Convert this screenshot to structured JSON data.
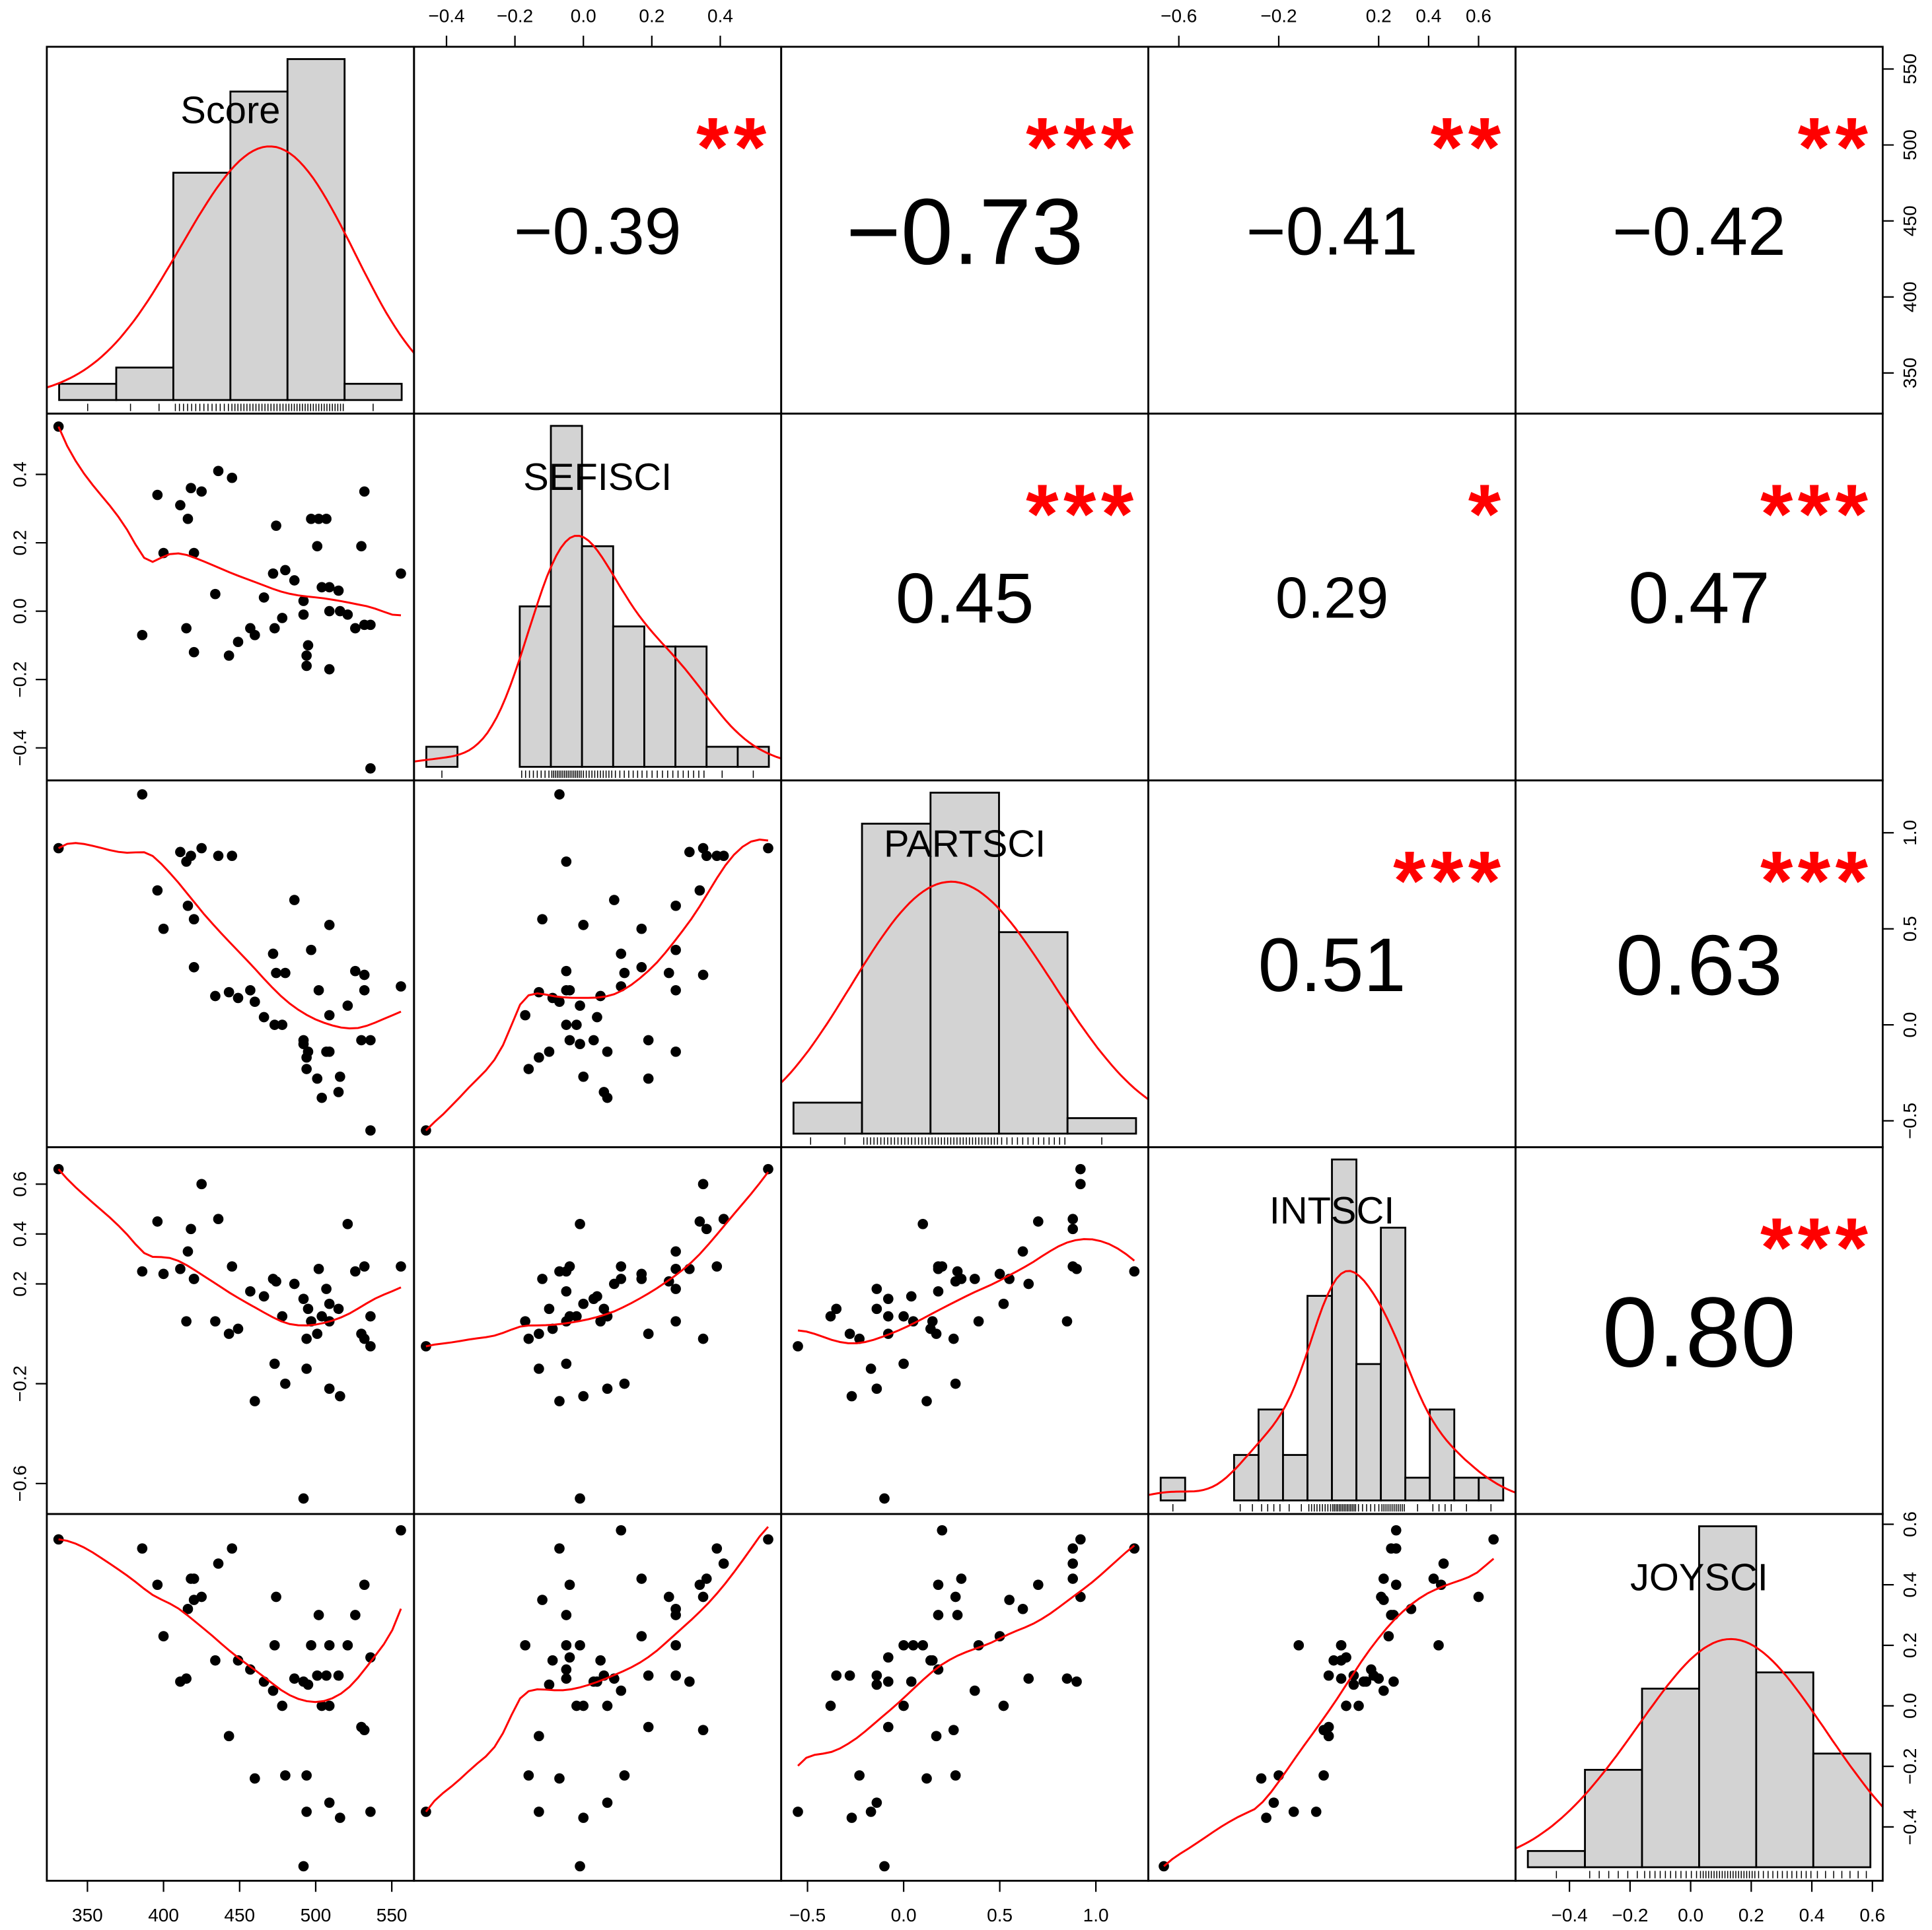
{
  "chart_data": {
    "type": "scatter-matrix",
    "grid": false,
    "colors": {
      "points": "#000000",
      "smooth_line": "#ff0000",
      "density_line": "#ff0000",
      "histogram_fill": "#d3d3d3",
      "stars": "#ff0000",
      "correlation_text": "#000000"
    },
    "variables": [
      {
        "name": "Score",
        "axis_range": [
          323.3,
          564.6
        ],
        "ticks": [
          350,
          400,
          450,
          500,
          550
        ],
        "tick_labels": [
          "350",
          "400",
          "450",
          "500",
          "550"
        ],
        "histogram_counts": [
          1,
          2,
          14,
          19,
          21,
          1
        ]
      },
      {
        "name": "SEFISCI",
        "axis_range": [
          -0.495,
          0.578
        ],
        "ticks": [
          -0.4,
          -0.2,
          0,
          0.2,
          0.4
        ],
        "tick_labels": [
          "−0.4",
          "−0.2",
          "0.0",
          "0.2",
          "0.4"
        ],
        "histogram_counts": [
          1,
          0,
          0,
          8,
          17,
          11,
          7,
          6,
          6,
          1,
          1
        ]
      },
      {
        "name": "PARTSCI",
        "axis_range": [
          -0.637,
          1.273
        ],
        "ticks": [
          -0.5,
          0,
          0.5,
          1.0
        ],
        "tick_labels": [
          "−0.5",
          "0.0",
          "0.5",
          "1.0"
        ],
        "histogram_counts": [
          2,
          20,
          22,
          13,
          1
        ]
      },
      {
        "name": "INTSCI",
        "axis_range": [
          -0.722,
          0.748
        ],
        "ticks": [
          -0.6,
          -0.2,
          0.2,
          0.4,
          0.6
        ],
        "tick_labels": [
          "−0.6",
          "−0.2",
          "0.2",
          "0.4",
          "0.6"
        ],
        "histogram_counts": [
          1,
          0,
          0,
          2,
          4,
          2,
          9,
          15,
          6,
          12,
          1,
          4,
          1,
          1
        ]
      },
      {
        "name": "JOYSCI",
        "axis_range": [
          -0.578,
          0.634
        ],
        "ticks": [
          -0.4,
          -0.2,
          0,
          0.2,
          0.4,
          0.6
        ],
        "tick_labels": [
          "−0.4",
          "−0.2",
          "0.0",
          "0.2",
          "0.4",
          "0.6"
        ],
        "histogram_counts": [
          1,
          6,
          11,
          21,
          12,
          7
        ]
      }
    ],
    "correlations": [
      {
        "pair": [
          "Score",
          "SEFISCI"
        ],
        "r": -0.39,
        "label": "−0.39",
        "stars": "**"
      },
      {
        "pair": [
          "Score",
          "PARTSCI"
        ],
        "r": -0.73,
        "label": "−0.73",
        "stars": "***"
      },
      {
        "pair": [
          "Score",
          "INTSCI"
        ],
        "r": -0.41,
        "label": "−0.41",
        "stars": "**"
      },
      {
        "pair": [
          "Score",
          "JOYSCI"
        ],
        "r": -0.42,
        "label": "−0.42",
        "stars": "**"
      },
      {
        "pair": [
          "SEFISCI",
          "PARTSCI"
        ],
        "r": 0.45,
        "label": "0.45",
        "stars": "***"
      },
      {
        "pair": [
          "SEFISCI",
          "INTSCI"
        ],
        "r": 0.29,
        "label": "0.29",
        "stars": "*"
      },
      {
        "pair": [
          "SEFISCI",
          "JOYSCI"
        ],
        "r": 0.47,
        "label": "0.47",
        "stars": "***"
      },
      {
        "pair": [
          "PARTSCI",
          "INTSCI"
        ],
        "r": 0.51,
        "label": "0.51",
        "stars": "***"
      },
      {
        "pair": [
          "PARTSCI",
          "JOYSCI"
        ],
        "r": 0.63,
        "label": "0.63",
        "stars": "***"
      },
      {
        "pair": [
          "INTSCI",
          "JOYSCI"
        ],
        "r": 0.8,
        "label": "0.80",
        "stars": "***"
      }
    ],
    "observations_columns": [
      "Score",
      "SEFISCI",
      "PARTSCI",
      "INTSCI",
      "JOYSCI"
    ],
    "observations": [
      [
        331,
        0.54,
        0.92,
        0.66,
        0.55
      ],
      [
        396,
        0.34,
        0.7,
        0.45,
        0.4
      ],
      [
        411,
        0.31,
        0.9,
        0.26,
        0.08
      ],
      [
        418,
        0.36,
        0.88,
        0.42,
        0.42
      ],
      [
        425,
        0.35,
        0.92,
        0.6,
        0.36
      ],
      [
        416,
        0.27,
        0.62,
        0.33,
        0.32
      ],
      [
        400,
        0.17,
        0.5,
        0.24,
        0.23
      ],
      [
        420,
        0.17,
        0.3,
        0.22,
        0.42
      ],
      [
        436,
        0.41,
        0.88,
        0.46,
        0.47
      ],
      [
        445,
        0.39,
        0.88,
        0.27,
        0.52
      ],
      [
        386,
        -0.07,
        1.2,
        0.25,
        0.52
      ],
      [
        415,
        -0.05,
        0.85,
        0.05,
        0.09
      ],
      [
        420,
        -0.12,
        0.55,
        0.22,
        0.35
      ],
      [
        434,
        0.05,
        0.15,
        0.05,
        0.15
      ],
      [
        443,
        -0.13,
        0.17,
        0.0,
        -0.1
      ],
      [
        449,
        -0.09,
        0.14,
        0.02,
        0.15
      ],
      [
        457,
        -0.05,
        0.18,
        0.17,
        0.12
      ],
      [
        460,
        -0.07,
        0.12,
        -0.27,
        -0.24
      ],
      [
        466,
        0.04,
        0.04,
        0.15,
        0.08
      ],
      [
        472,
        0.11,
        0.37,
        0.22,
        0.05
      ],
      [
        474,
        0.25,
        0.27,
        0.21,
        0.36
      ],
      [
        480,
        0.12,
        0.27,
        -0.2,
        -0.23
      ],
      [
        486,
        0.09,
        0.65,
        0.2,
        0.09
      ],
      [
        473,
        -0.05,
        0.0,
        -0.12,
        0.2
      ],
      [
        478,
        -0.02,
        0.0,
        0.07,
        0.0
      ],
      [
        492,
        0.03,
        -0.08,
        0.14,
        0.08
      ],
      [
        495,
        -0.1,
        -0.14,
        0.1,
        0.07
      ],
      [
        494,
        -0.13,
        -0.17,
        -0.14,
        -0.35
      ],
      [
        494,
        -0.16,
        -0.23,
        -0.02,
        -0.23
      ],
      [
        497,
        0.27,
        0.39,
        0.05,
        0.2
      ],
      [
        502,
        0.27,
        0.18,
        0.26,
        0.3
      ],
      [
        507,
        0.27,
        -0.14,
        0.18,
        0.1
      ],
      [
        504,
        0.07,
        -0.38,
        0.07,
        0.0
      ],
      [
        509,
        0.07,
        -0.14,
        -0.22,
        -0.32
      ],
      [
        515,
        0.06,
        -0.35,
        0.1,
        0.1
      ],
      [
        509,
        -0.17,
        0.05,
        0.05,
        0.2
      ],
      [
        509,
        0.0,
        0.52,
        0.12,
        0.0
      ],
      [
        516,
        0.0,
        -0.27,
        -0.25,
        -0.37
      ],
      [
        521,
        -0.01,
        0.1,
        0.44,
        0.2
      ],
      [
        526,
        -0.05,
        0.28,
        0.25,
        0.3
      ],
      [
        532,
        -0.04,
        0.18,
        0.27,
        0.4
      ],
      [
        536,
        -0.04,
        -0.08,
        0.07,
        0.16
      ],
      [
        532,
        0.35,
        0.26,
        -0.02,
        -0.08
      ],
      [
        530,
        0.19,
        -0.08,
        0.0,
        -0.07
      ],
      [
        536,
        -0.46,
        -0.55,
        -0.05,
        -0.35
      ],
      [
        556,
        0.11,
        0.2,
        0.27,
        0.58
      ],
      [
        501,
        0.19,
        -0.28,
        0.0,
        0.1
      ],
      [
        492,
        -0.01,
        -0.1,
        -0.66,
        -0.53
      ]
    ]
  }
}
